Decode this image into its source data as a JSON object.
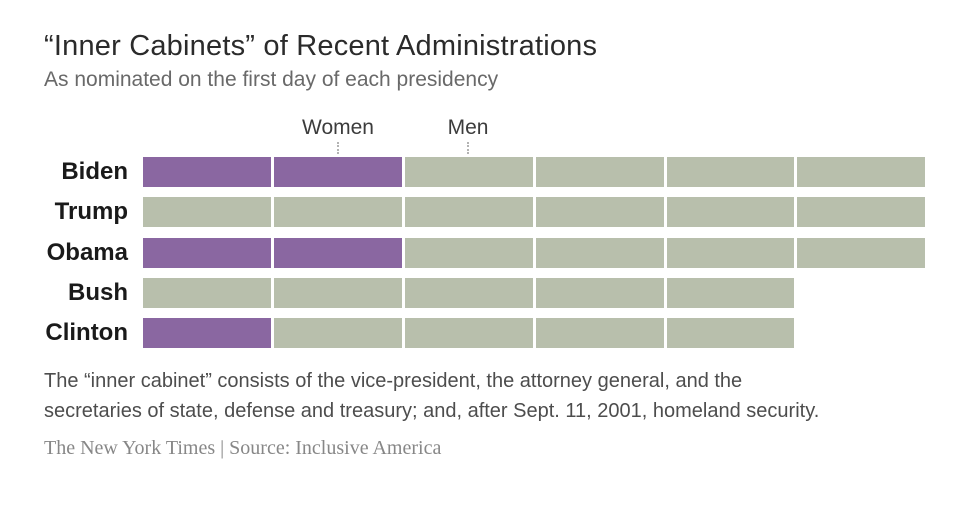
{
  "header": {
    "title": "“Inner Cabinets” of Recent Administrations",
    "subtitle": "As nominated on the first day of each presidency"
  },
  "legend": {
    "women_label": "Women",
    "men_label": "Men"
  },
  "chart_data": {
    "type": "bar",
    "orientation": "horizontal",
    "stacked": true,
    "title": "“Inner Cabinets” of Recent Administrations",
    "subtitle": "As nominated on the first day of each presidency",
    "categories": [
      "Biden",
      "Trump",
      "Obama",
      "Bush",
      "Clinton"
    ],
    "series": [
      {
        "name": "Women",
        "color": "#8a67a1",
        "values": [
          2,
          0,
          2,
          0,
          1
        ]
      },
      {
        "name": "Men",
        "color": "#b8bfac",
        "values": [
          4,
          6,
          4,
          5,
          4
        ]
      }
    ],
    "totals": [
      6,
      6,
      6,
      5,
      5
    ],
    "xlim": [
      0,
      6
    ],
    "unit": "cabinet positions",
    "legend_position": "top",
    "gridlines": false,
    "segment_gap_color": "#ffffff"
  },
  "footer": {
    "note_line1": "The “inner cabinet” consists of the vice-president, the attorney general, and the",
    "note_line2": "secretaries of state, defense and treasury; and, after Sept. 11, 2001, homeland security.",
    "credit": "The New York Times",
    "separator": "|",
    "source": "Source: Inclusive America"
  }
}
